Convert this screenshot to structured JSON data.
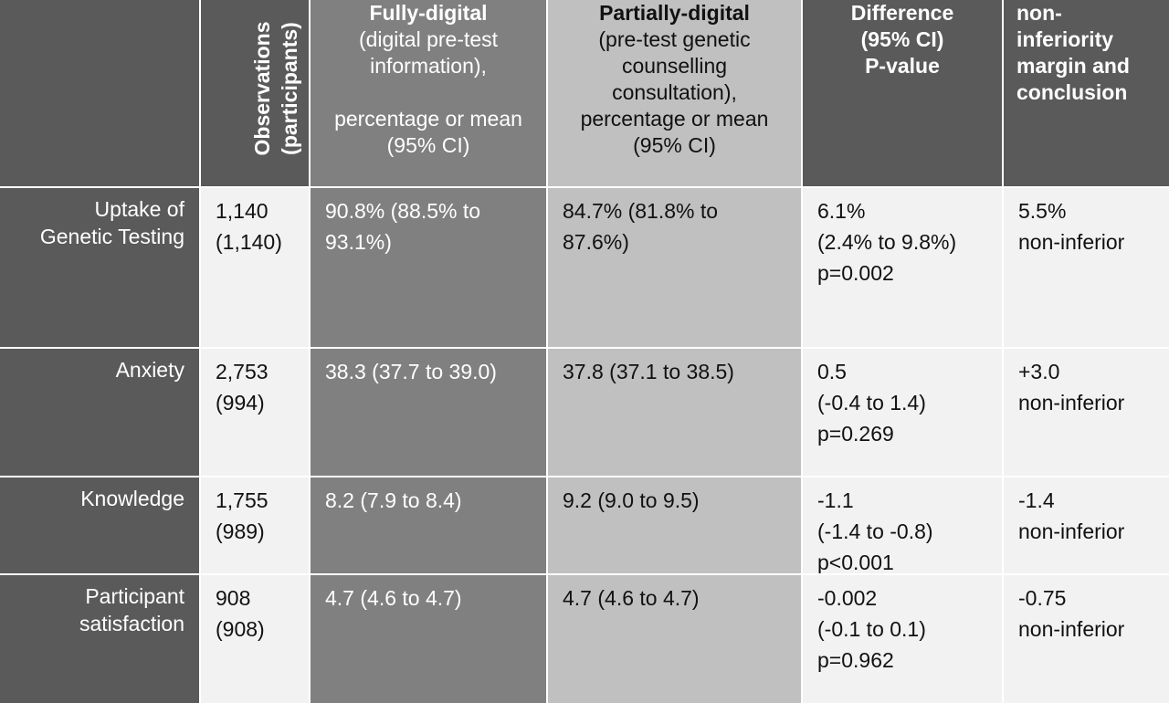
{
  "header": {
    "observations": [
      "Observations",
      "(participants)"
    ],
    "fully_digital": {
      "title": "Fully-digital",
      "lines": [
        "(digital pre-test",
        "information),"
      ],
      "lines2": [
        "percentage or mean",
        "(95% CI)"
      ]
    },
    "partially_digital": {
      "title": "Partially-digital",
      "lines": [
        "(pre-test genetic",
        "counselling",
        "consultation),",
        "percentage or mean",
        "(95% CI)"
      ]
    },
    "difference": [
      "Difference",
      "(95% CI)",
      "P-value"
    ],
    "margin": [
      "non-",
      "inferiority",
      "margin and",
      "conclusion"
    ]
  },
  "rows": [
    {
      "label": [
        "Uptake of",
        "Genetic Testing"
      ],
      "observations": [
        "1,140",
        "(1,140)"
      ],
      "fully_digital": [
        "90.8% (88.5% to",
        "93.1%)"
      ],
      "partially_digital": [
        "84.7% (81.8% to",
        "87.6%)"
      ],
      "difference": [
        "6.1%",
        "(2.4% to 9.8%)",
        "p=0.002"
      ],
      "margin": [
        "5.5%",
        "non-inferior"
      ]
    },
    {
      "label": [
        "Anxiety"
      ],
      "observations": [
        "2,753",
        "(994)"
      ],
      "fully_digital": [
        "38.3 (37.7 to 39.0)"
      ],
      "partially_digital": [
        "37.8 (37.1 to 38.5)"
      ],
      "difference": [
        "0.5",
        "(-0.4 to 1.4)",
        "p=0.269"
      ],
      "margin": [
        "+3.0",
        "non-inferior"
      ]
    },
    {
      "label": [
        "Knowledge"
      ],
      "observations": [
        "1,755",
        "(989)"
      ],
      "fully_digital": [
        "8.2 (7.9 to 8.4)"
      ],
      "partially_digital": [
        "9.2 (9.0 to 9.5)"
      ],
      "difference": [
        "-1.1",
        "(-1.4 to -0.8)",
        "p<0.001"
      ],
      "margin": [
        "-1.4",
        "non-inferior"
      ]
    },
    {
      "label": [
        "Participant",
        "satisfaction"
      ],
      "observations": [
        "908",
        "(908)"
      ],
      "fully_digital": [
        "4.7 (4.6 to 4.7)"
      ],
      "partially_digital": [
        "4.7 (4.6 to 4.7)"
      ],
      "difference": [
        "-0.002",
        "(-0.1 to 0.1)",
        "p=0.962"
      ],
      "margin": [
        "-0.75",
        "non-inferior"
      ]
    }
  ]
}
